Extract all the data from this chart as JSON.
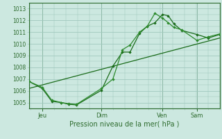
{
  "title": "",
  "xlabel": "Pression niveau de la mer( hPa )",
  "ylabel": "",
  "bg_color": "#cce8e0",
  "grid_color": "#a0c8be",
  "line_color": "#1a6b1a",
  "line_color2": "#2d8b2d",
  "ylim": [
    1004.5,
    1013.5
  ],
  "yticks": [
    1005,
    1006,
    1007,
    1008,
    1009,
    1010,
    1011,
    1012,
    1013
  ],
  "xlim": [
    0,
    1
  ],
  "day_positions": [
    0.07,
    0.38,
    0.7,
    0.88
  ],
  "day_labels": [
    "Jeu",
    "Dim",
    "Ven",
    "Sam"
  ],
  "series1_x": [
    0.0,
    0.07,
    0.12,
    0.17,
    0.21,
    0.25,
    0.38,
    0.44,
    0.49,
    0.53,
    0.58,
    0.62,
    0.66,
    0.7,
    0.73,
    0.76,
    0.8,
    0.88,
    0.94,
    1.0
  ],
  "series1_y": [
    1006.8,
    1006.2,
    1005.1,
    1005.0,
    1004.85,
    1004.8,
    1006.05,
    1008.1,
    1009.3,
    1009.3,
    1010.9,
    1011.5,
    1011.8,
    1012.5,
    1012.4,
    1011.7,
    1011.15,
    1010.8,
    1010.5,
    1010.8
  ],
  "series2_x": [
    0.0,
    0.07,
    0.12,
    0.17,
    0.21,
    0.25,
    0.38,
    0.44,
    0.49,
    0.53,
    0.58,
    0.62,
    0.66,
    0.7,
    0.73,
    0.76,
    0.8,
    0.88,
    0.94,
    1.0
  ],
  "series2_y": [
    1006.8,
    1006.3,
    1005.2,
    1005.0,
    1004.9,
    1004.85,
    1006.2,
    1007.0,
    1009.5,
    1009.9,
    1011.0,
    1011.5,
    1012.6,
    1012.2,
    1011.8,
    1011.4,
    1011.2,
    1010.3,
    1010.6,
    1010.85
  ],
  "series3_x": [
    0.0,
    1.0
  ],
  "series3_y": [
    1006.2,
    1010.5
  ],
  "font_color": "#2d6b2d",
  "figsize": [
    3.2,
    2.0
  ],
  "dpi": 100
}
